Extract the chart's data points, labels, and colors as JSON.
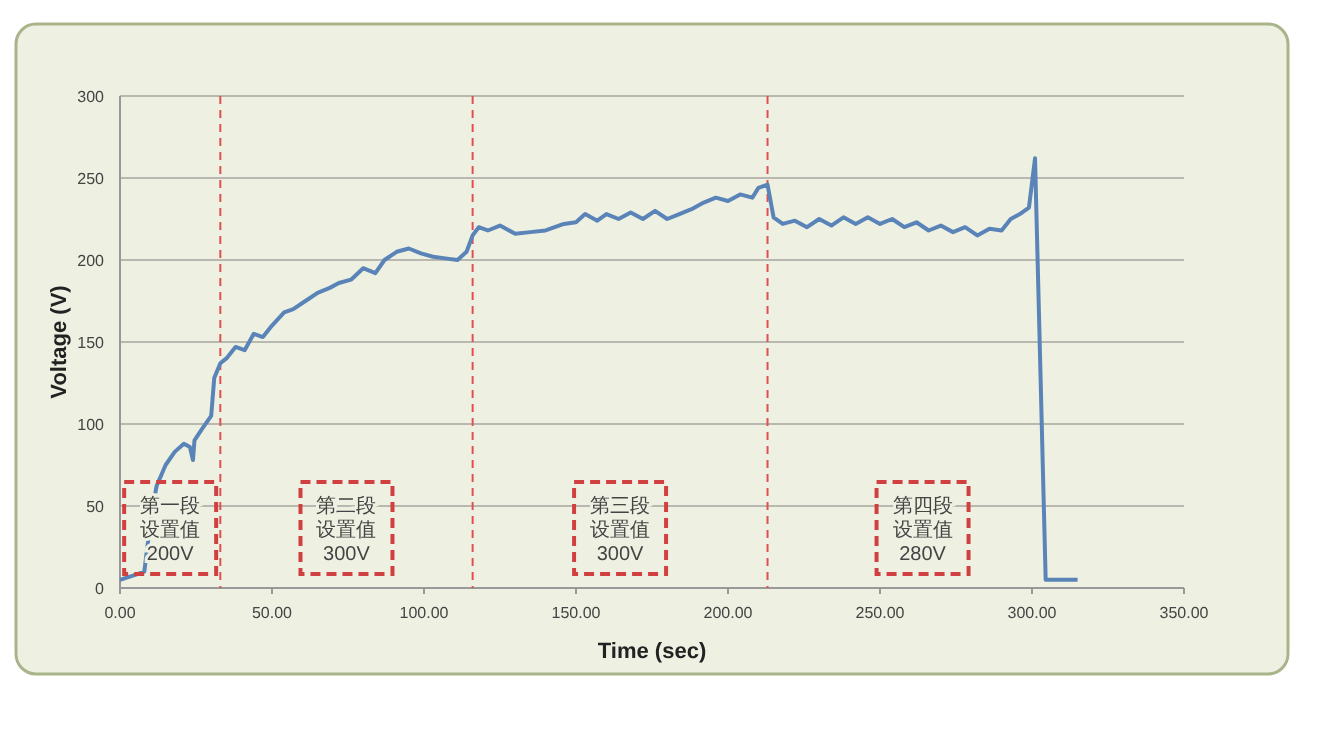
{
  "chart_data": {
    "type": "line",
    "xlabel": "Time (sec)",
    "ylabel": "Voltage (V)",
    "x": [
      0,
      5,
      8,
      10,
      12,
      15,
      18,
      21,
      23,
      24,
      24.5,
      27,
      30,
      31,
      33,
      35,
      38,
      41,
      44,
      47,
      50,
      54,
      57,
      61,
      65,
      69,
      72,
      76,
      80,
      84,
      87,
      91,
      95,
      99,
      103,
      107,
      111,
      114,
      116,
      118,
      121,
      125,
      130,
      135,
      140,
      146,
      150,
      153,
      157,
      160,
      164,
      168,
      172,
      176,
      180,
      184,
      188,
      192,
      196,
      200,
      204,
      208,
      210,
      213,
      215,
      218,
      222,
      226,
      230,
      234,
      238,
      242,
      246,
      250,
      254,
      258,
      262,
      266,
      270,
      274,
      278,
      282,
      286,
      290,
      293,
      296,
      299,
      301,
      304.5,
      315
    ],
    "values": [
      5,
      8,
      10,
      40,
      62,
      75,
      83,
      88,
      86,
      78,
      90,
      97,
      105,
      128,
      137,
      140,
      147,
      145,
      155,
      153,
      160,
      168,
      170,
      175,
      180,
      183,
      186,
      188,
      195,
      192,
      200,
      205,
      207,
      204,
      202,
      201,
      200,
      205,
      215,
      220,
      218,
      221,
      216,
      217,
      218,
      222,
      223,
      228,
      224,
      228,
      225,
      229,
      225,
      230,
      225,
      228,
      231,
      235,
      238,
      236,
      240,
      238,
      244,
      246,
      226,
      222,
      224,
      220,
      225,
      221,
      226,
      222,
      226,
      222,
      225,
      220,
      223,
      218,
      221,
      217,
      220,
      215,
      219,
      218,
      225,
      228,
      232,
      262,
      5,
      5
    ],
    "color": "#5a84b8",
    "xlim": [
      0,
      350
    ],
    "ylim": [
      0,
      300
    ],
    "xticks": [
      {
        "value": 0,
        "label": "0.00"
      },
      {
        "value": 50,
        "label": "50.00"
      },
      {
        "value": 100,
        "label": "100.00"
      },
      {
        "value": 150,
        "label": "150.00"
      },
      {
        "value": 200,
        "label": "200.00"
      },
      {
        "value": 250,
        "label": "250.00"
      },
      {
        "value": 300,
        "label": "300.00"
      },
      {
        "value": 350,
        "label": "350.00"
      }
    ],
    "yticks": [
      0,
      50,
      100,
      150,
      200,
      250,
      300
    ],
    "grid": "y",
    "ref_lines": [
      {
        "axis": "x",
        "value": 33,
        "color": "#e05050",
        "line_style": "dashed"
      },
      {
        "axis": "x",
        "value": 116,
        "color": "#e05050",
        "line_style": "dashed"
      },
      {
        "axis": "x",
        "value": 213,
        "color": "#e05050",
        "line_style": "dashed"
      }
    ],
    "annotations": [
      "第一段设置值200V",
      "第二段设置值300V",
      "第三段设置值300V",
      "第四段设置值280V"
    ]
  }
}
